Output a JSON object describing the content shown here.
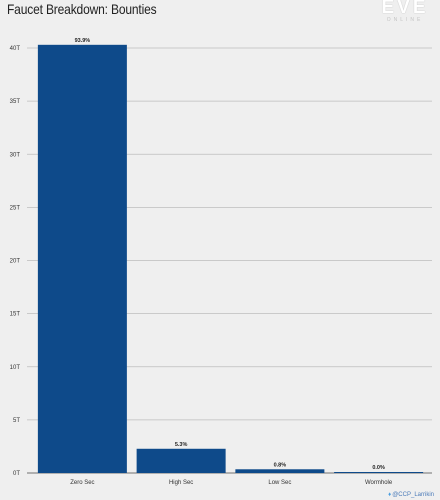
{
  "header": {
    "title": "Faucet Breakdown: Bounties",
    "logo_text": "EVE",
    "logo_subtext": "ONLINE"
  },
  "credit": {
    "icon": "twitter-bird-icon",
    "text": "@CCP_Larrikin"
  },
  "colors": {
    "bar": "#0e4a8a",
    "grid": "#bdbdbd",
    "background": "#efefef"
  },
  "chart_data": {
    "type": "bar",
    "title": "Faucet Breakdown: Bounties",
    "xlabel": "",
    "ylabel": "",
    "categories": [
      "Zero Sec",
      "High Sec",
      "Low Sec",
      "Wormhole"
    ],
    "values": [
      40.3,
      2.28,
      0.35,
      0.01
    ],
    "data_labels": [
      "93.9%",
      "5.3%",
      "0.8%",
      "0.0%"
    ],
    "ylim": [
      0,
      40
    ],
    "yticks": [
      0,
      5,
      10,
      15,
      20,
      25,
      30,
      35,
      40
    ],
    "ytick_labels": [
      "0T",
      "5T",
      "10T",
      "15T",
      "20T",
      "25T",
      "30T",
      "35T",
      "40T"
    ],
    "grid": true,
    "legend": false
  }
}
